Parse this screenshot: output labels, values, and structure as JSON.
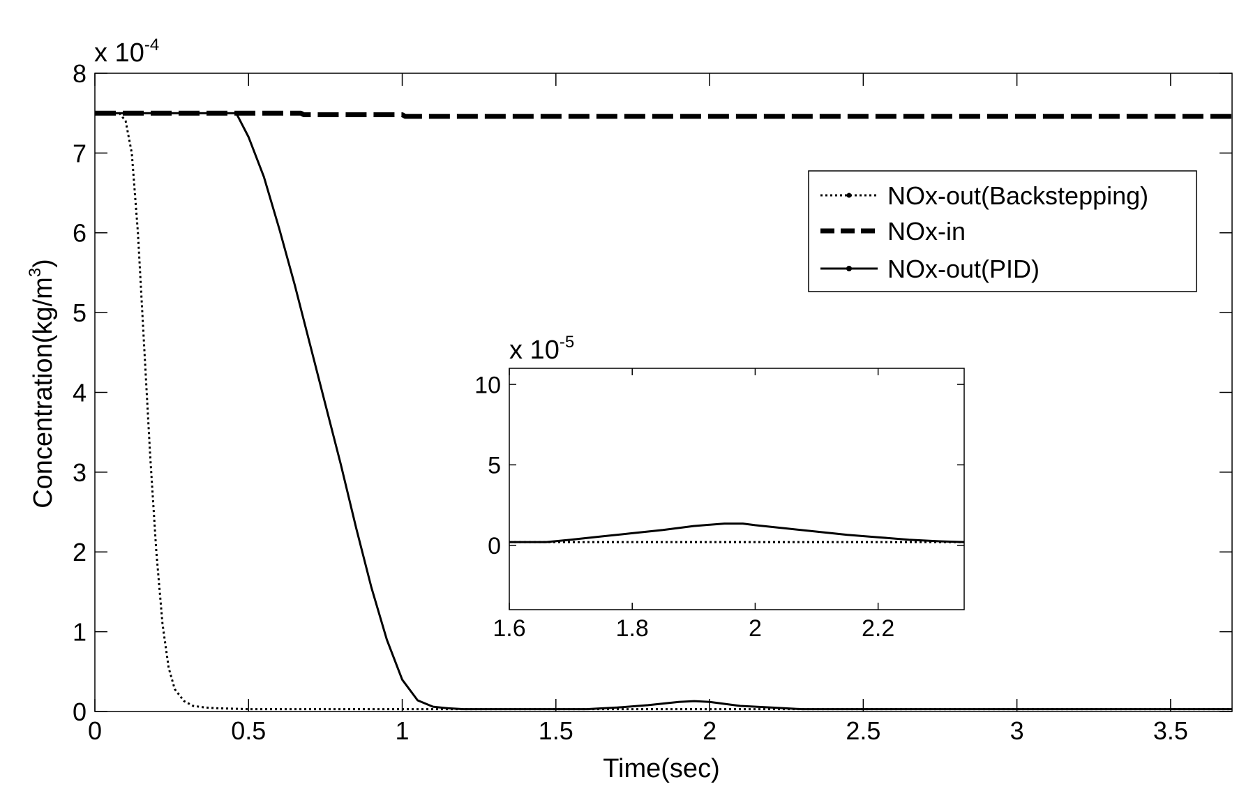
{
  "chart_data": [
    {
      "type": "line",
      "xlabel": "Time(sec)",
      "ylabel": "Concentration(kg/m³)",
      "ylabel_base": "Concentration(kg/m",
      "ylabel_sup": "3",
      "ylabel_close": ")",
      "exponent": {
        "base": "x 10",
        "power": "-4"
      },
      "xlim": [
        0,
        3.7
      ],
      "ylim": [
        0,
        8
      ],
      "x_ticks": [
        "0",
        "0.5",
        "1",
        "1.5",
        "2",
        "2.5",
        "3",
        "3.5"
      ],
      "y_ticks": [
        "0",
        "1",
        "2",
        "3",
        "4",
        "5",
        "6",
        "7",
        "8"
      ],
      "grid": false,
      "legend_position": "top-right",
      "series": [
        {
          "name": "NOx-out(Backstepping)",
          "style": "dotted",
          "points": [
            [
              0,
              7.5
            ],
            [
              0.08,
              7.5
            ],
            [
              0.1,
              7.4
            ],
            [
              0.12,
              7.0
            ],
            [
              0.14,
              6.0
            ],
            [
              0.16,
              4.6
            ],
            [
              0.18,
              3.2
            ],
            [
              0.2,
              2.0
            ],
            [
              0.22,
              1.1
            ],
            [
              0.24,
              0.55
            ],
            [
              0.26,
              0.28
            ],
            [
              0.29,
              0.13
            ],
            [
              0.32,
              0.07
            ],
            [
              0.36,
              0.05
            ],
            [
              0.4,
              0.04
            ],
            [
              0.5,
              0.03
            ],
            [
              1.0,
              0.03
            ],
            [
              2.0,
              0.03
            ],
            [
              3.7,
              0.03
            ]
          ]
        },
        {
          "name": "NOx-in",
          "style": "dashed",
          "points": [
            [
              0,
              7.5
            ],
            [
              0.67,
              7.5
            ],
            [
              0.68,
              7.48
            ],
            [
              1.0,
              7.48
            ],
            [
              1.01,
              7.46
            ],
            [
              3.7,
              7.46
            ]
          ]
        },
        {
          "name": "NOx-out(PID)",
          "style": "solid",
          "points": [
            [
              0,
              7.5
            ],
            [
              0.46,
              7.5
            ],
            [
              0.5,
              7.2
            ],
            [
              0.55,
              6.7
            ],
            [
              0.6,
              6.05
            ],
            [
              0.65,
              5.35
            ],
            [
              0.7,
              4.6
            ],
            [
              0.75,
              3.85
            ],
            [
              0.8,
              3.1
            ],
            [
              0.85,
              2.3
            ],
            [
              0.9,
              1.55
            ],
            [
              0.95,
              0.9
            ],
            [
              1.0,
              0.4
            ],
            [
              1.05,
              0.14
            ],
            [
              1.1,
              0.06
            ],
            [
              1.15,
              0.04
            ],
            [
              1.2,
              0.03
            ],
            [
              1.6,
              0.03
            ],
            [
              1.7,
              0.05
            ],
            [
              1.8,
              0.08
            ],
            [
              1.9,
              0.12
            ],
            [
              1.95,
              0.13
            ],
            [
              2.0,
              0.12
            ],
            [
              2.1,
              0.07
            ],
            [
              2.2,
              0.05
            ],
            [
              2.3,
              0.03
            ],
            [
              3.7,
              0.03
            ]
          ]
        }
      ]
    },
    {
      "type": "line",
      "exponent": {
        "base": "x 10",
        "power": "-5"
      },
      "xlim": [
        1.6,
        2.34
      ],
      "ylim": [
        -4,
        11
      ],
      "x_ticks": [
        "1.6",
        "1.8",
        "2",
        "2.2"
      ],
      "y_ticks": [
        "0",
        "5",
        "10"
      ],
      "series": [
        {
          "name": "NOx-out(Backstepping)",
          "style": "dotted",
          "points": [
            [
              1.6,
              0.2
            ],
            [
              2.34,
              0.2
            ]
          ]
        },
        {
          "name": "NOx-out(PID)",
          "style": "solid",
          "points": [
            [
              1.6,
              0.2
            ],
            [
              1.66,
              0.2
            ],
            [
              1.7,
              0.35
            ],
            [
              1.75,
              0.55
            ],
            [
              1.8,
              0.75
            ],
            [
              1.85,
              0.95
            ],
            [
              1.9,
              1.2
            ],
            [
              1.95,
              1.35
            ],
            [
              1.98,
              1.35
            ],
            [
              2.0,
              1.25
            ],
            [
              2.05,
              1.05
            ],
            [
              2.1,
              0.85
            ],
            [
              2.15,
              0.65
            ],
            [
              2.2,
              0.5
            ],
            [
              2.25,
              0.35
            ],
            [
              2.3,
              0.25
            ],
            [
              2.34,
              0.2
            ]
          ]
        }
      ]
    }
  ]
}
